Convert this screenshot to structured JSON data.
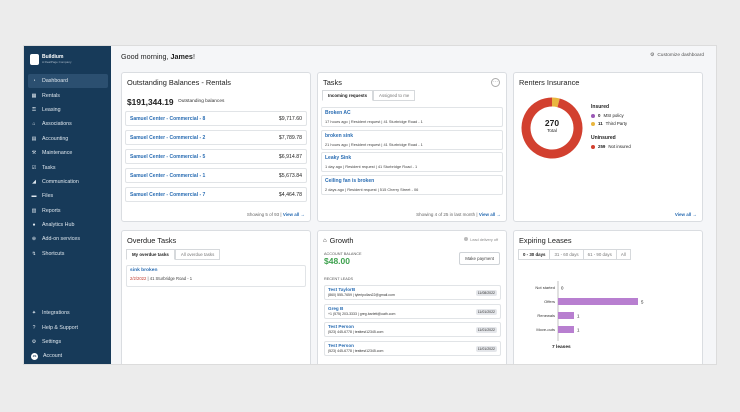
{
  "sidebar": {
    "logo_name": "Buildium",
    "logo_sub": "A RealPage Company",
    "items": [
      {
        "label": "Dashboard",
        "icon": "dashboard-icon"
      },
      {
        "label": "Rentals",
        "icon": "building-icon"
      },
      {
        "label": "Leasing",
        "icon": "key-icon"
      },
      {
        "label": "Associations",
        "icon": "community-icon"
      },
      {
        "label": "Accounting",
        "icon": "calculator-icon"
      },
      {
        "label": "Maintenance",
        "icon": "wrench-icon"
      },
      {
        "label": "Tasks",
        "icon": "checklist-icon"
      },
      {
        "label": "Communication",
        "icon": "megaphone-icon"
      },
      {
        "label": "Files",
        "icon": "folder-icon"
      },
      {
        "label": "Reports",
        "icon": "report-icon"
      },
      {
        "label": "Analytics Hub",
        "icon": "analytics-icon"
      },
      {
        "label": "Add-on services",
        "icon": "plus-icon"
      },
      {
        "label": "Shortcuts",
        "icon": "lightning-icon"
      }
    ],
    "bottom_items": [
      {
        "label": "Integrations",
        "icon": "integrations-icon"
      },
      {
        "label": "Help & Support",
        "icon": "help-icon"
      },
      {
        "label": "Settings",
        "icon": "gear-icon"
      },
      {
        "label": "Account",
        "icon": "avatar-icon",
        "avatar_initials": "JS"
      }
    ]
  },
  "header": {
    "greeting_prefix": "Good morning,",
    "user_name": "James",
    "greeting_suffix": "!",
    "customize_label": "Customize dashboard"
  },
  "outstanding": {
    "title": "Outstanding Balances - Rentals",
    "total": "$191,344.19",
    "total_label": "Outstanding balances",
    "rows": [
      {
        "name": "Samuel Center - Commercial - 8",
        "amount": "$9,717.60"
      },
      {
        "name": "Samuel Center - Commercial - 2",
        "amount": "$7,789.78"
      },
      {
        "name": "Samuel Center - Commercial - 5",
        "amount": "$6,914.87"
      },
      {
        "name": "Samuel Center - Commercial - 1",
        "amount": "$5,673.84"
      },
      {
        "name": "Samuel Center - Commercial - 7",
        "amount": "$4,464.78"
      }
    ],
    "footer_text": "Showing 5 of 93 |",
    "view_all": "View all →"
  },
  "tasks": {
    "title": "Tasks",
    "tab_incoming": "Incoming requests",
    "tab_assigned": "Assigned to me",
    "items": [
      {
        "title": "Broken AC",
        "meta": "17 hours ago | Resident request | 41 Sturbridge Road - 1"
      },
      {
        "title": "broken sink",
        "meta": "21 hours ago | Resident request | 41 Sturbridge Road - 1"
      },
      {
        "title": "Leaky Sink",
        "meta": "1 day ago | Resident request | 41 Sturbridge Road - 1"
      },
      {
        "title": "Ceiling fan is broken",
        "meta": "2 days ago | Resident request | 515 Cherry Street - 06"
      }
    ],
    "footer_text": "Showing 4 of 25 in last month |",
    "view_all": "View all →"
  },
  "insurance": {
    "title": "Renters Insurance",
    "total": "270",
    "total_label": "Total",
    "insured_head": "Insured",
    "uninsured_head": "Uninsured",
    "legend": [
      {
        "count": "0",
        "label": "MSI policy",
        "color": "#9b59b6"
      },
      {
        "count": "11",
        "label": "Third Party",
        "color": "#e9b63f"
      },
      {
        "count": "259",
        "label": "Not insured",
        "color": "#d2402f"
      }
    ],
    "chart_data": {
      "type": "pie",
      "categories": [
        "MSI policy",
        "Third Party",
        "Not insured"
      ],
      "values": [
        0,
        11,
        259
      ]
    },
    "view_all": "View all →"
  },
  "overdue": {
    "title": "Overdue Tasks",
    "tab_my": "My overdue tasks",
    "tab_all": "All overdue tasks",
    "item_title": "sink broken",
    "item_date": "2/2/2022",
    "item_location": "| 41 Sturbridge Road - 1"
  },
  "growth": {
    "title": "Growth",
    "delivery_label": "Lead delivery off",
    "balance_label": "ACCOUNT BALANCE",
    "balance_value": "$48.00",
    "pay_button": "Make payment",
    "leads_label": "RECENT LEADS",
    "leads": [
      {
        "name": "Test TaylorB",
        "contact": "(860) 555-7659 | tyleripollan22@gmail.com",
        "date": "11/08/2022"
      },
      {
        "name": "Greg B",
        "contact": "+1 (575) 203-3333 | greg.barlett@oath.com",
        "date": "11/01/2022"
      },
      {
        "name": "Test Person",
        "contact": "(523) 445-6778 | testtest12345.com",
        "date": "11/01/2022"
      },
      {
        "name": "Test Person",
        "contact": "(523) 445-6778 | testtest12345.com",
        "date": "11/01/2022"
      }
    ]
  },
  "leases": {
    "title": "Expiring Leases",
    "tabs": [
      "0 - 30 days",
      "31 - 60 days",
      "61 - 90 days",
      "All"
    ],
    "total_label": "7 leases",
    "chart_data": {
      "type": "bar",
      "orientation": "horizontal",
      "categories": [
        "Not started",
        "Offers",
        "Renewals",
        "Move-outs"
      ],
      "values": [
        0,
        5,
        1,
        1
      ],
      "color": "#b87fd0"
    }
  }
}
